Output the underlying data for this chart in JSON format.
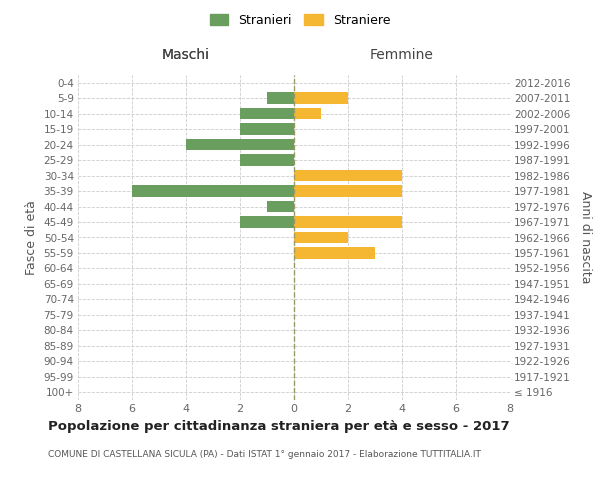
{
  "age_groups": [
    "100+",
    "95-99",
    "90-94",
    "85-89",
    "80-84",
    "75-79",
    "70-74",
    "65-69",
    "60-64",
    "55-59",
    "50-54",
    "45-49",
    "40-44",
    "35-39",
    "30-34",
    "25-29",
    "20-24",
    "15-19",
    "10-14",
    "5-9",
    "0-4"
  ],
  "birth_years": [
    "≤ 1916",
    "1917-1921",
    "1922-1926",
    "1927-1931",
    "1932-1936",
    "1937-1941",
    "1942-1946",
    "1947-1951",
    "1952-1956",
    "1957-1961",
    "1962-1966",
    "1967-1971",
    "1972-1976",
    "1977-1981",
    "1982-1986",
    "1987-1991",
    "1992-1996",
    "1997-2001",
    "2002-2006",
    "2007-2011",
    "2012-2016"
  ],
  "maschi": [
    0,
    0,
    0,
    0,
    0,
    0,
    0,
    0,
    0,
    0,
    0,
    2,
    1,
    6,
    0,
    2,
    4,
    2,
    2,
    1,
    0
  ],
  "femmine": [
    0,
    0,
    0,
    0,
    0,
    0,
    0,
    0,
    0,
    3,
    2,
    4,
    0,
    4,
    4,
    0,
    0,
    0,
    1,
    2,
    0
  ],
  "color_maschi": "#6a9e5e",
  "color_femmine": "#f5b731",
  "title": "Popolazione per cittadinanza straniera per età e sesso - 2017",
  "subtitle": "COMUNE DI CASTELLANA SICULA (PA) - Dati ISTAT 1° gennaio 2017 - Elaborazione TUTTITALIA.IT",
  "header_left": "Maschi",
  "header_right": "Femmine",
  "ylabel_left": "Fasce di età",
  "ylabel_right": "Anni di nascita",
  "legend_maschi": "Stranieri",
  "legend_femmine": "Straniere",
  "xlim": 8,
  "background_color": "#ffffff",
  "grid_color": "#cccccc",
  "center_line_color": "#999966",
  "tick_color": "#666666",
  "title_fontsize": 9.5,
  "subtitle_fontsize": 6.5,
  "ytick_fontsize": 7.5,
  "xtick_fontsize": 8,
  "header_fontsize": 10,
  "ylabel_fontsize": 9,
  "legend_fontsize": 9
}
